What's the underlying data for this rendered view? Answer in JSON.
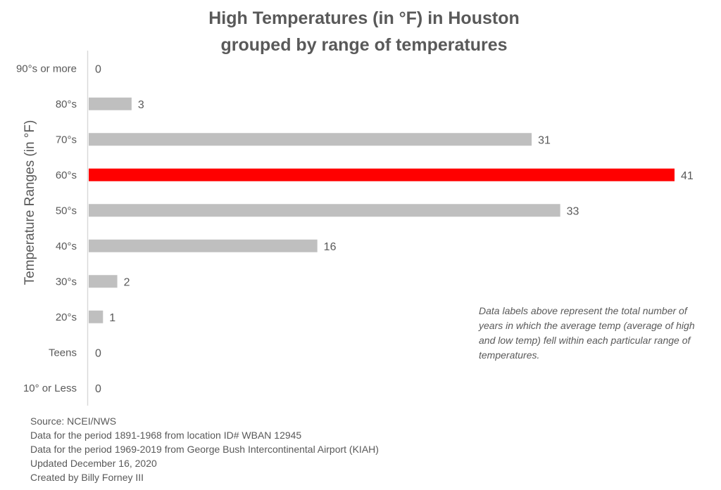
{
  "chart_data": {
    "type": "bar",
    "orientation": "horizontal",
    "title": "High Temperatures (in °F) in Houston",
    "subtitle": "grouped by range of temperatures",
    "ylabel": "Temperature Ranges (in °F)",
    "xlabel": "",
    "categories": [
      "90°s or more",
      "80°s",
      "70°s",
      "60°s",
      "50°s",
      "40°s",
      "30°s",
      "20°s",
      "Teens",
      "10° or Less"
    ],
    "values": [
      0,
      3,
      31,
      41,
      33,
      16,
      2,
      1,
      0,
      0
    ],
    "xlim": [
      0,
      41
    ],
    "highlight_category": "60°s",
    "colors": {
      "default_bar": "#BFBFBF",
      "highlight_bar": "#FF0000",
      "axis": "#D9D9D9",
      "text": "#595959"
    },
    "grid": false,
    "legend": "none",
    "note": "Data labels above represent the total number of years in which the average temp (average of high and low temp) fell within each particular range of temperatures."
  },
  "footer": {
    "lines": [
      "Source: NCEI/NWS",
      "Data for the period 1891-1968 from location ID# WBAN 12945",
      "Data for the period 1969-2019 from George Bush Intercontinental Airport (KIAH)",
      "Updated December 16, 2020",
      "Created by Billy Forney III"
    ]
  }
}
